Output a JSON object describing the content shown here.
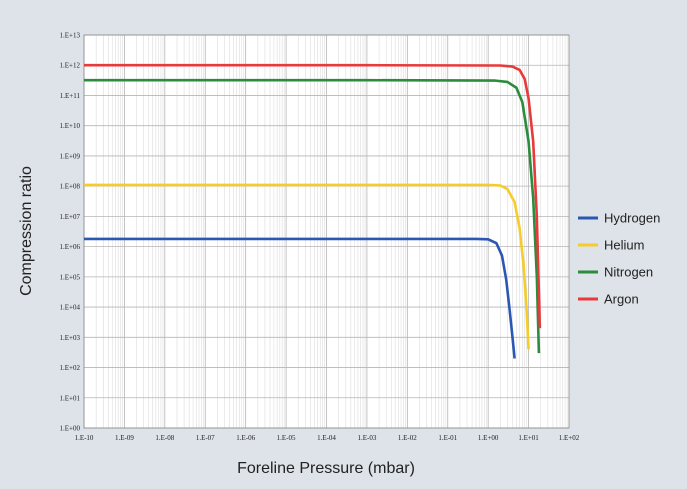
{
  "chart_data": {
    "type": "line",
    "title": "",
    "xlabel": "Foreline Pressure (mbar)",
    "ylabel": "Compression ratio",
    "xscale": "log",
    "yscale": "log",
    "xlim": [
      1e-10,
      100
    ],
    "ylim": [
      1,
      10000000000000.0
    ],
    "grid": true,
    "legend_position": "right",
    "x_tick_labels": [
      "1.E-10",
      "1.E-09",
      "1.E-08",
      "1.E-07",
      "1.E-06",
      "1.E-05",
      "1.E-04",
      "1.E-03",
      "1.E-02",
      "1.E-01",
      "1.E+00",
      "1.E+01",
      "1.E+02"
    ],
    "y_tick_labels": [
      "1.E+00",
      "1.E+01",
      "1.E+02",
      "1.E+03",
      "1.E+04",
      "1.E+05",
      "1.E+06",
      "1.E+07",
      "1.E+08",
      "1.E+09",
      "1.E+10",
      "1.E+11",
      "1.E+12",
      "1.E+13"
    ],
    "series": [
      {
        "name": "Hydrogen",
        "color": "#2b57b2",
        "x": [
          1e-10,
          0.001,
          0.5,
          1,
          1.6,
          2.2,
          2.8,
          3.4,
          4.0,
          4.5
        ],
        "y": [
          1800000.0,
          1800000.0,
          1800000.0,
          1750000.0,
          1300000.0,
          500000.0,
          80000.0,
          8000.0,
          1000.0,
          200.0
        ]
      },
      {
        "name": "Helium",
        "color": "#f5cc2a",
        "x": [
          1e-10,
          0.001,
          1,
          2,
          3,
          4.5,
          6,
          7.5,
          9,
          10
        ],
        "y": [
          110000000.0,
          110000000.0,
          110000000.0,
          105000000.0,
          80000000.0,
          30000000.0,
          4000000.0,
          250000.0,
          7000.0,
          400.0
        ]
      },
      {
        "name": "Nitrogen",
        "color": "#2a8c3c",
        "x": [
          1e-10,
          0.001,
          1.5,
          3,
          5,
          7,
          10,
          13,
          16,
          18
        ],
        "y": [
          320000000000.0,
          320000000000.0,
          310000000000.0,
          280000000000.0,
          180000000000.0,
          60000000000.0,
          3000000000.0,
          40000000.0,
          100000.0,
          300.0
        ]
      },
      {
        "name": "Argon",
        "color": "#e8393b",
        "x": [
          1e-10,
          0.001,
          2,
          4,
          6,
          8,
          10,
          13,
          16,
          19
        ],
        "y": [
          1000000000000.0,
          1000000000000.0,
          980000000000.0,
          900000000000.0,
          700000000000.0,
          350000000000.0,
          80000000000.0,
          3000000000.0,
          10000000.0,
          2000.0
        ]
      }
    ]
  }
}
